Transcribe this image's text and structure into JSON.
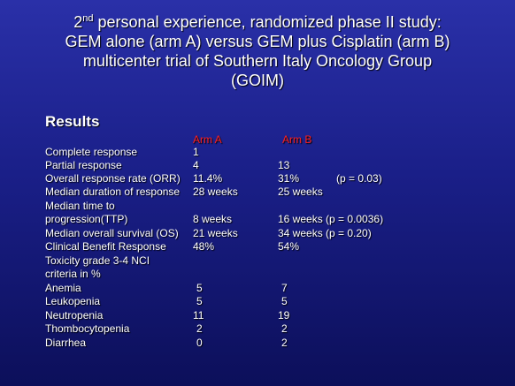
{
  "title": {
    "ordinal_num": "2",
    "ordinal_suffix": "nd",
    "line1_rest": " personal experience, randomized phase II study:",
    "line2": "GEM alone (arm A) versus GEM plus Cisplatin (arm B)",
    "line3": "multicenter trial of Southern Italy Oncology Group",
    "line4": "(GOIM)"
  },
  "results_heading": "Results",
  "arm_a_label": "Arm  A",
  "arm_b_label": "Arm  B",
  "rows": [
    {
      "label": "Complete response",
      "a": "1",
      "b": ""
    },
    {
      "label": "Partial response",
      "a": "4",
      "b": "13"
    },
    {
      "label": "Overall response rate (ORR)",
      "a": "11.4%",
      "b": "31%",
      "note": "(p = 0.03)"
    },
    {
      "label": "Median duration of response",
      "a": "28 weeks",
      "b": "25 weeks"
    },
    {
      "label": "Median time to",
      "a": "",
      "b": ""
    },
    {
      "label": "progression(TTP)",
      "a": "8 weeks",
      "b": "16 weeks (p = 0.0036)"
    },
    {
      "label": "Median overall survival (OS)",
      "a": "21 weeks",
      "b": "34 weeks (p = 0.20)"
    },
    {
      "label": "Clinical Benefit Response",
      "a": "48%",
      "b": "54%"
    },
    {
      "label": "Toxicity grade 3-4  NCI",
      "a": "",
      "b": ""
    },
    {
      "label": "criteria in %",
      "a": "",
      "b": ""
    },
    {
      "label": "Anemia",
      "a": "5",
      "b": "7"
    },
    {
      "label": "Leukopenia",
      "a": "5",
      "b": "5"
    },
    {
      "label": "Neutropenia",
      "a": "11",
      "b": "19"
    },
    {
      "label": "Thombocytopenia",
      "a": "2",
      "b": "2"
    },
    {
      "label": "Diarrhea",
      "a": "0",
      "b": "2"
    }
  ]
}
